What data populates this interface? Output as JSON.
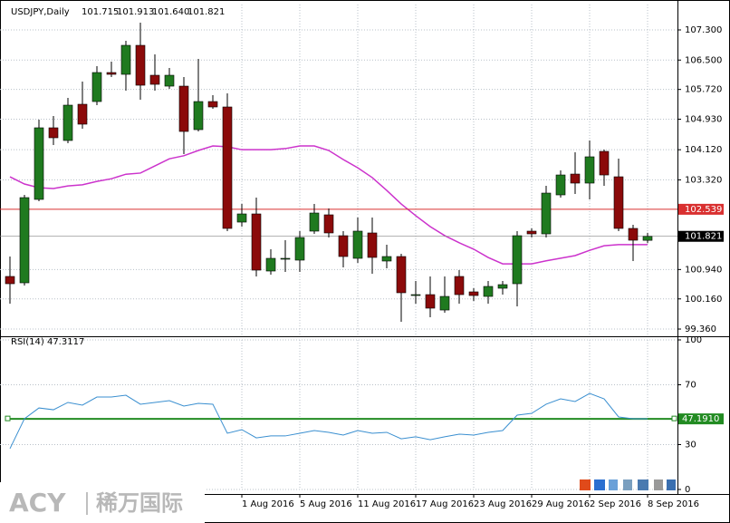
{
  "watermark": {
    "brand": "ACY",
    "cn": "稀万国际"
  },
  "chart_data": [
    {
      "type": "candlestick",
      "title": "USDJPY,Daily",
      "header_values": [
        "101.715",
        "101.913",
        "101.640",
        "101.821"
      ],
      "categories": [
        null,
        null,
        null,
        null,
        null,
        null,
        null,
        null,
        null,
        null,
        null,
        null,
        null,
        null,
        null,
        null,
        "1 Aug 2016",
        null,
        null,
        null,
        "5 Aug 2016",
        null,
        null,
        null,
        "11 Aug 2016",
        null,
        null,
        null,
        "17 Aug 2016",
        null,
        null,
        null,
        "23 Aug 2016",
        null,
        null,
        null,
        "29 Aug 2016",
        null,
        null,
        null,
        "2 Sep 2016",
        null,
        null,
        null,
        "8 Sep 2016"
      ],
      "open": [
        100.756,
        100.587,
        102.801,
        104.702,
        104.365,
        105.327,
        105.399,
        106.169,
        106.121,
        106.891,
        106.097,
        105.808,
        105.808,
        104.653,
        105.399,
        105.255,
        102.199,
        102.416,
        100.9,
        101.213,
        101.189,
        101.959,
        102.392,
        101.838,
        101.237,
        101.911,
        101.165,
        101.285,
        100.25,
        100.274,
        99.865,
        100.756,
        100.347,
        100.226,
        100.443,
        100.563,
        101.959,
        101.886,
        102.921,
        103.474,
        103.234,
        104.076,
        103.402,
        102.031,
        101.715
      ],
      "high": [
        101.285,
        102.921,
        104.918,
        105.014,
        105.495,
        105.929,
        106.338,
        106.458,
        107.011,
        107.492,
        106.65,
        106.289,
        106.049,
        106.53,
        105.568,
        105.616,
        102.68,
        102.849,
        101.477,
        101.718,
        101.959,
        102.68,
        102.56,
        101.959,
        102.32,
        102.32,
        101.598,
        101.357,
        100.635,
        100.756,
        100.756,
        100.924,
        100.443,
        100.635,
        100.635,
        101.959,
        102.031,
        103.162,
        103.571,
        104.052,
        104.365,
        104.124,
        103.883,
        102.127,
        101.913
      ],
      "low": [
        100.034,
        100.515,
        102.753,
        104.244,
        104.292,
        104.677,
        105.303,
        106.049,
        105.688,
        105.447,
        105.688,
        105.736,
        104.004,
        104.605,
        105.207,
        101.959,
        102.079,
        100.756,
        100.804,
        100.876,
        100.876,
        101.886,
        101.79,
        100.996,
        101.117,
        100.828,
        100.972,
        99.553,
        100.034,
        99.673,
        99.793,
        100.034,
        100.106,
        100.034,
        100.274,
        99.962,
        101.79,
        101.79,
        102.849,
        102.945,
        102.801,
        103.162,
        101.959,
        101.165,
        101.64
      ],
      "close": [
        100.563,
        102.849,
        104.702,
        104.437,
        105.303,
        104.798,
        106.169,
        106.121,
        106.891,
        105.832,
        105.856,
        106.097,
        104.605,
        105.399,
        105.255,
        102.031,
        102.416,
        100.924,
        101.237,
        101.237,
        101.79,
        102.44,
        101.911,
        101.285,
        101.959,
        101.261,
        101.285,
        100.323,
        100.274,
        99.914,
        100.226,
        100.274,
        100.25,
        100.491,
        100.539,
        101.838,
        101.886,
        102.969,
        103.45,
        103.234,
        103.932,
        103.45,
        102.031,
        101.718,
        101.821
      ],
      "up_color": "#1f7a1f",
      "down_color": "#8b0a0a",
      "ma": {
        "color": "#cc33cc",
        "values": [
          103.4,
          103.21,
          103.11,
          103.09,
          103.16,
          103.19,
          103.28,
          103.35,
          103.47,
          103.5,
          103.69,
          103.88,
          103.96,
          104.1,
          104.22,
          104.2,
          104.12,
          104.12,
          104.12,
          104.15,
          104.22,
          104.22,
          104.1,
          103.86,
          103.64,
          103.38,
          103.04,
          102.68,
          102.37,
          102.08,
          101.84,
          101.65,
          101.48,
          101.26,
          101.09,
          101.09,
          101.09,
          101.17,
          101.24,
          101.31,
          101.45,
          101.57,
          101.6,
          101.6,
          101.6
        ]
      },
      "hline": {
        "value": 102.539,
        "label": "102.539",
        "color": "#d93030"
      },
      "current_price": {
        "value": 101.821,
        "label": "101.821"
      },
      "ylim": [
        99.192,
        107.974
      ],
      "yticks": [
        {
          "value": 99.36,
          "label": "99.360"
        },
        {
          "value": 100.16,
          "label": "100.160"
        },
        {
          "value": 100.94,
          "label": "100.940"
        },
        {
          "value": 103.32,
          "label": "103.320"
        },
        {
          "value": 104.12,
          "label": "104.120"
        },
        {
          "value": 104.93,
          "label": "104.930"
        },
        {
          "value": 105.72,
          "label": "105.720"
        },
        {
          "value": 106.5,
          "label": "106.500"
        },
        {
          "value": 107.3,
          "label": "107.300"
        }
      ],
      "grid": true
    },
    {
      "type": "line",
      "title": "RSI(14) 47.3117",
      "color": "#3a8fd0",
      "values": [
        27.3,
        47.3,
        54.5,
        53.3,
        58.2,
        56.4,
        61.8,
        61.8,
        63.0,
        57.0,
        58.2,
        59.4,
        55.8,
        57.6,
        57.0,
        37.6,
        40.0,
        34.5,
        35.8,
        35.8,
        37.6,
        39.4,
        38.2,
        36.4,
        39.4,
        37.6,
        38.2,
        33.9,
        35.2,
        33.3,
        35.2,
        37.0,
        36.4,
        38.2,
        39.4,
        49.7,
        50.9,
        57.0,
        60.6,
        58.8,
        64.2,
        60.6,
        48.5,
        47.3,
        47.3
      ],
      "level": {
        "value": 47.191,
        "label": "47.1910",
        "color": "#228b22"
      },
      "ylim": [
        0,
        100
      ],
      "yticks": [
        0,
        30,
        70,
        100
      ],
      "grid": true
    }
  ]
}
